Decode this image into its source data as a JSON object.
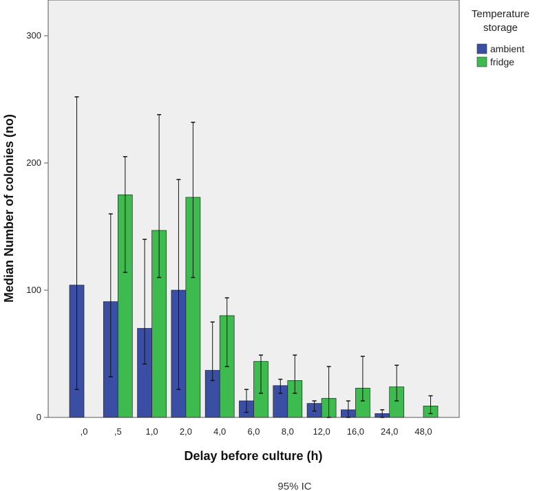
{
  "chart_data": {
    "type": "bar",
    "xlabel": "Delay before culture (h)",
    "ylabel": "Median Number of colonies (no)",
    "ylim": [
      0,
      330
    ],
    "yticks": [
      0,
      100,
      200,
      300
    ],
    "grid": false,
    "legend_placement": "top-right, outside plot",
    "legend_title": [
      "Temperature",
      "storage"
    ],
    "note": "95% IC",
    "categories": [
      ",0",
      ",5",
      "1,0",
      "2,0",
      "4,0",
      "6,0",
      "8,0",
      "12,0",
      "16,0",
      "24,0",
      "48,0"
    ],
    "series": [
      {
        "name": "ambient",
        "color": "#3a4fa3",
        "values": [
          104,
          91,
          70,
          100,
          37,
          13,
          25,
          11,
          6,
          3,
          null
        ],
        "ci_low": [
          22,
          32,
          42,
          22,
          29,
          4,
          19,
          5,
          0,
          0,
          null
        ],
        "ci_high": [
          252,
          160,
          140,
          187,
          75,
          22,
          30,
          13,
          13,
          6,
          null
        ]
      },
      {
        "name": "fridge",
        "color": "#3dbb4e",
        "values": [
          null,
          175,
          147,
          173,
          80,
          44,
          29,
          15,
          23,
          24,
          9
        ],
        "ci_low": [
          null,
          114,
          110,
          110,
          40,
          19,
          19,
          0,
          13,
          13,
          3
        ],
        "ci_high": [
          null,
          205,
          238,
          232,
          94,
          49,
          49,
          40,
          48,
          41,
          17
        ]
      }
    ]
  }
}
